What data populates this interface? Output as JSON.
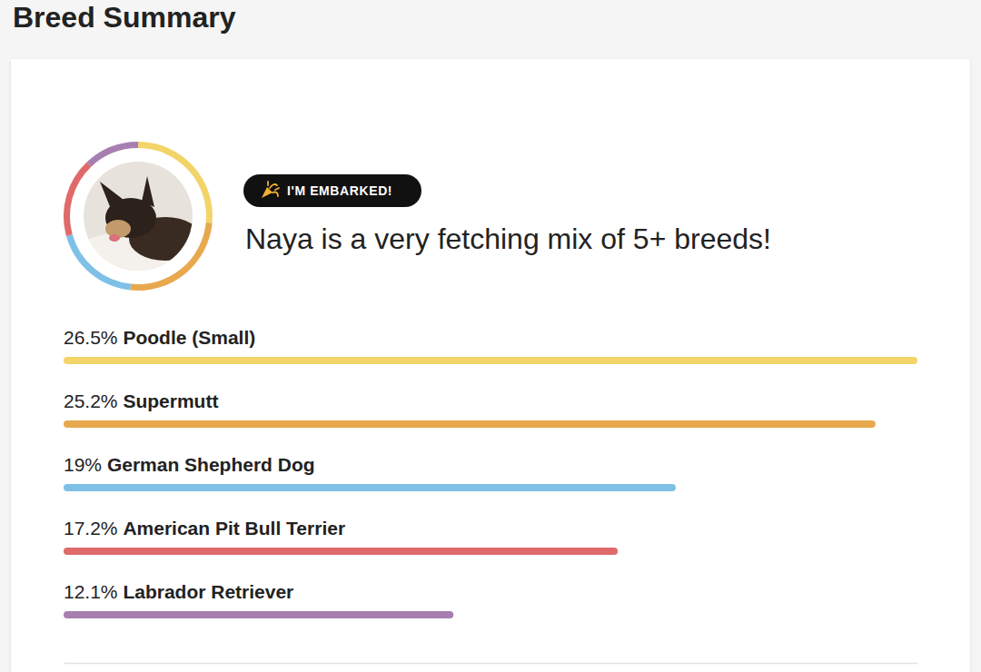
{
  "chart_data": {
    "type": "bar",
    "orientation": "horizontal",
    "title": "Breed Summary",
    "subtitle": "Naya is a very fetching mix of 5+ breeds!",
    "annotations": [
      "I'M EMBARKED!"
    ],
    "categories": [
      "Poodle (Small)",
      "Supermutt",
      "German Shepherd Dog",
      "American Pit Bull Terrier",
      "Labrador Retriever"
    ],
    "values": [
      26.5,
      25.2,
      19,
      17.2,
      12.1
    ],
    "value_labels": [
      "26.5%",
      "25.2%",
      "19%",
      "17.2%",
      "12.1%"
    ],
    "colors": [
      "#f2d469",
      "#e8a84e",
      "#7fc0e6",
      "#e06a6a",
      "#a67fb0"
    ],
    "xlim": [
      0,
      26.5
    ],
    "tick_labels": false,
    "data_labels": true
  }
}
